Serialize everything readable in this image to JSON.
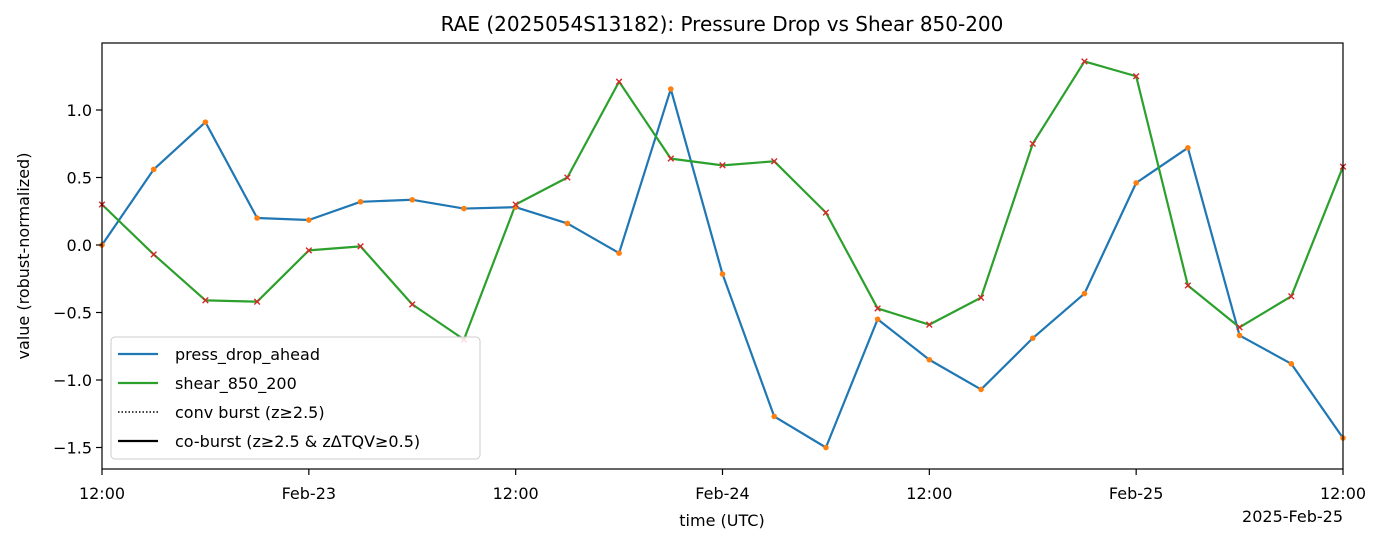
{
  "chart_data": {
    "type": "line",
    "title": "RAE (2025054S13182): Pressure Drop vs Shear 850-200",
    "xlabel": "time (UTC)",
    "ylabel": "value (robust-normalized)",
    "x_offset_label": "2025-Feb-25",
    "x_hours": [
      0,
      3,
      6,
      9,
      12,
      15,
      18,
      21,
      24,
      27,
      30,
      33,
      36,
      39,
      42,
      45,
      48,
      51,
      54,
      57,
      60,
      63,
      66,
      69,
      72
    ],
    "xlim_hours": [
      0,
      72
    ],
    "x_ticks": [
      {
        "hour": 0,
        "label": "12:00"
      },
      {
        "hour": 12,
        "label": "Feb-23"
      },
      {
        "hour": 24,
        "label": "12:00"
      },
      {
        "hour": 36,
        "label": "Feb-24"
      },
      {
        "hour": 48,
        "label": "12:00"
      },
      {
        "hour": 60,
        "label": "Feb-25"
      },
      {
        "hour": 72,
        "label": "12:00"
      }
    ],
    "ylim": [
      -1.65,
      1.5
    ],
    "y_ticks": [
      {
        "value": 1.0,
        "label": "1.0"
      },
      {
        "value": 0.5,
        "label": "0.5"
      },
      {
        "value": 0.0,
        "label": "0.0"
      },
      {
        "value": -0.5,
        "label": "−0.5"
      },
      {
        "value": -1.0,
        "label": "−1.0"
      },
      {
        "value": -1.5,
        "label": "−1.5"
      }
    ],
    "grid": false,
    "legend_position": "lower-left",
    "series": [
      {
        "name": "press_drop_ahead",
        "color": "#1f77b4",
        "marker": "dot",
        "marker_color": "#ff7f0e",
        "values": [
          0.0,
          0.56,
          0.91,
          0.2,
          0.185,
          0.32,
          0.335,
          0.27,
          0.28,
          0.16,
          -0.06,
          1.155,
          -0.215,
          -1.27,
          -1.5,
          -0.55,
          -0.85,
          -1.07,
          -0.69,
          -0.36,
          0.46,
          0.72,
          -0.67,
          -0.88,
          -1.43
        ]
      },
      {
        "name": "shear_850_200",
        "color": "#2ca02c",
        "marker": "x",
        "marker_color": "#d62728",
        "values": [
          0.3,
          -0.07,
          -0.41,
          -0.42,
          -0.04,
          -0.01,
          -0.44,
          -0.7,
          0.3,
          0.5,
          1.21,
          0.64,
          0.59,
          0.62,
          0.24,
          -0.47,
          -0.59,
          -0.39,
          0.75,
          1.36,
          1.25,
          -0.3,
          -0.61,
          -0.38,
          0.58
        ]
      }
    ],
    "legend": [
      {
        "label": "press_drop_ahead",
        "color": "#1f77b4",
        "style": "solid"
      },
      {
        "label": "shear_850_200",
        "color": "#2ca02c",
        "style": "solid"
      },
      {
        "label": "conv burst (z≥2.5)",
        "color": "#000000",
        "style": "dotted"
      },
      {
        "label": "co-burst (z≥2.5 & zΔTQV≥0.5)",
        "color": "#000000",
        "style": "solid"
      }
    ]
  }
}
